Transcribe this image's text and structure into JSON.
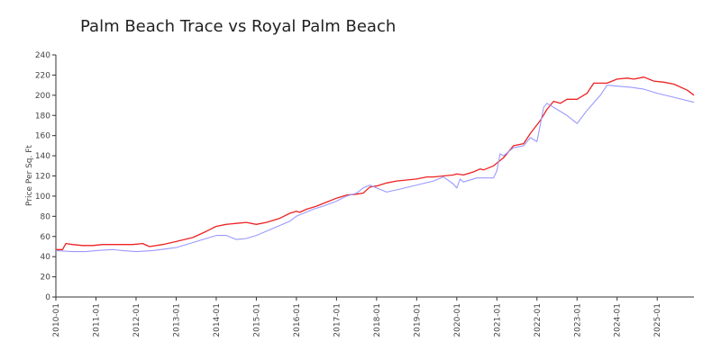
{
  "chart_data": {
    "type": "line",
    "title": "Palm Beach Trace vs Royal Palm Beach",
    "xlabel": "",
    "ylabel": "Price Per Sq. Ft",
    "ylim": [
      0,
      240
    ],
    "yticks": [
      0,
      20,
      40,
      60,
      80,
      100,
      120,
      140,
      160,
      180,
      200,
      220,
      240
    ],
    "xticks": [
      "2010-01",
      "2011-01",
      "2012-01",
      "2013-01",
      "2014-01",
      "2015-01",
      "2016-01",
      "2017-01",
      "2018-01",
      "2019-01",
      "2020-01",
      "2021-01",
      "2022-01",
      "2023-01",
      "2024-01",
      "2025-01"
    ],
    "xlim": [
      "2010-01",
      "2025-12"
    ],
    "grid": false,
    "legend": "none",
    "series": [
      {
        "color": "#ee2222",
        "points": [
          [
            "2010-01",
            47
          ],
          [
            "2010-03",
            47
          ],
          [
            "2010-04",
            53
          ],
          [
            "2010-06",
            52
          ],
          [
            "2010-09",
            51
          ],
          [
            "2010-12",
            51
          ],
          [
            "2011-03",
            52
          ],
          [
            "2011-09",
            52
          ],
          [
            "2011-12",
            52
          ],
          [
            "2012-03",
            53
          ],
          [
            "2012-05",
            50
          ],
          [
            "2012-09",
            52
          ],
          [
            "2013-01",
            55
          ],
          [
            "2013-06",
            59
          ],
          [
            "2013-10",
            65
          ],
          [
            "2014-01",
            70
          ],
          [
            "2014-04",
            72
          ],
          [
            "2014-07",
            73
          ],
          [
            "2014-10",
            74
          ],
          [
            "2015-01",
            72
          ],
          [
            "2015-04",
            74
          ],
          [
            "2015-08",
            78
          ],
          [
            "2015-11",
            83
          ],
          [
            "2016-01",
            85
          ],
          [
            "2016-02",
            84
          ],
          [
            "2016-04",
            87
          ],
          [
            "2016-07",
            90
          ],
          [
            "2016-10",
            94
          ],
          [
            "2017-01",
            98
          ],
          [
            "2017-04",
            101
          ],
          [
            "2017-07",
            102
          ],
          [
            "2017-09",
            103
          ],
          [
            "2017-10",
            106
          ],
          [
            "2017-11",
            109
          ],
          [
            "2018-01",
            110
          ],
          [
            "2018-04",
            113
          ],
          [
            "2018-07",
            115
          ],
          [
            "2018-10",
            116
          ],
          [
            "2019-01",
            117
          ],
          [
            "2019-04",
            119
          ],
          [
            "2019-06",
            119
          ],
          [
            "2019-09",
            120
          ],
          [
            "2019-12",
            121
          ],
          [
            "2020-01",
            122
          ],
          [
            "2020-03",
            121
          ],
          [
            "2020-06",
            124
          ],
          [
            "2020-08",
            127
          ],
          [
            "2020-09",
            126
          ],
          [
            "2020-12",
            130
          ],
          [
            "2021-03",
            138
          ],
          [
            "2021-06",
            150
          ],
          [
            "2021-09",
            152
          ],
          [
            "2021-11",
            162
          ],
          [
            "2022-02",
            175
          ],
          [
            "2022-04",
            186
          ],
          [
            "2022-06",
            194
          ],
          [
            "2022-08",
            192
          ],
          [
            "2022-10",
            196
          ],
          [
            "2023-01",
            196
          ],
          [
            "2023-04",
            202
          ],
          [
            "2023-06",
            212
          ],
          [
            "2023-08",
            212
          ],
          [
            "2023-10",
            212
          ],
          [
            "2024-01",
            216
          ],
          [
            "2024-04",
            217
          ],
          [
            "2024-06",
            216
          ],
          [
            "2024-09",
            218
          ],
          [
            "2024-12",
            214
          ],
          [
            "2025-03",
            213
          ],
          [
            "2025-06",
            211
          ],
          [
            "2025-10",
            205
          ],
          [
            "2025-12",
            200
          ]
        ]
      },
      {
        "color": "#9999ff",
        "points": [
          [
            "2010-01",
            46
          ],
          [
            "2010-06",
            45
          ],
          [
            "2010-10",
            45
          ],
          [
            "2011-01",
            46
          ],
          [
            "2011-06",
            47
          ],
          [
            "2011-09",
            46
          ],
          [
            "2012-01",
            45
          ],
          [
            "2012-06",
            46
          ],
          [
            "2013-01",
            49
          ],
          [
            "2013-07",
            55
          ],
          [
            "2014-01",
            61
          ],
          [
            "2014-04",
            61
          ],
          [
            "2014-07",
            57
          ],
          [
            "2014-10",
            58
          ],
          [
            "2015-01",
            61
          ],
          [
            "2015-06",
            68
          ],
          [
            "2015-11",
            75
          ],
          [
            "2016-01",
            80
          ],
          [
            "2016-06",
            87
          ],
          [
            "2016-09",
            90
          ],
          [
            "2017-01",
            95
          ],
          [
            "2017-04",
            100
          ],
          [
            "2017-07",
            103
          ],
          [
            "2017-09",
            108
          ],
          [
            "2017-11",
            111
          ],
          [
            "2018-01",
            108
          ],
          [
            "2018-04",
            104
          ],
          [
            "2018-08",
            107
          ],
          [
            "2019-01",
            111
          ],
          [
            "2019-06",
            115
          ],
          [
            "2019-09",
            119
          ],
          [
            "2019-12",
            112
          ],
          [
            "2020-01",
            108
          ],
          [
            "2020-02",
            117
          ],
          [
            "2020-03",
            114
          ],
          [
            "2020-07",
            118
          ],
          [
            "2020-12",
            118
          ],
          [
            "2021-01",
            125
          ],
          [
            "2021-02",
            142
          ],
          [
            "2021-03",
            140
          ],
          [
            "2021-06",
            148
          ],
          [
            "2021-09",
            150
          ],
          [
            "2021-11",
            158
          ],
          [
            "2022-01",
            154
          ],
          [
            "2022-03",
            188
          ],
          [
            "2022-04",
            192
          ],
          [
            "2022-07",
            186
          ],
          [
            "2022-10",
            180
          ],
          [
            "2023-01",
            172
          ],
          [
            "2023-04",
            185
          ],
          [
            "2023-08",
            200
          ],
          [
            "2023-10",
            210
          ],
          [
            "2024-01",
            209
          ],
          [
            "2024-05",
            208
          ],
          [
            "2024-09",
            206
          ],
          [
            "2025-01",
            202
          ],
          [
            "2025-06",
            198
          ],
          [
            "2025-12",
            193
          ]
        ]
      }
    ]
  }
}
